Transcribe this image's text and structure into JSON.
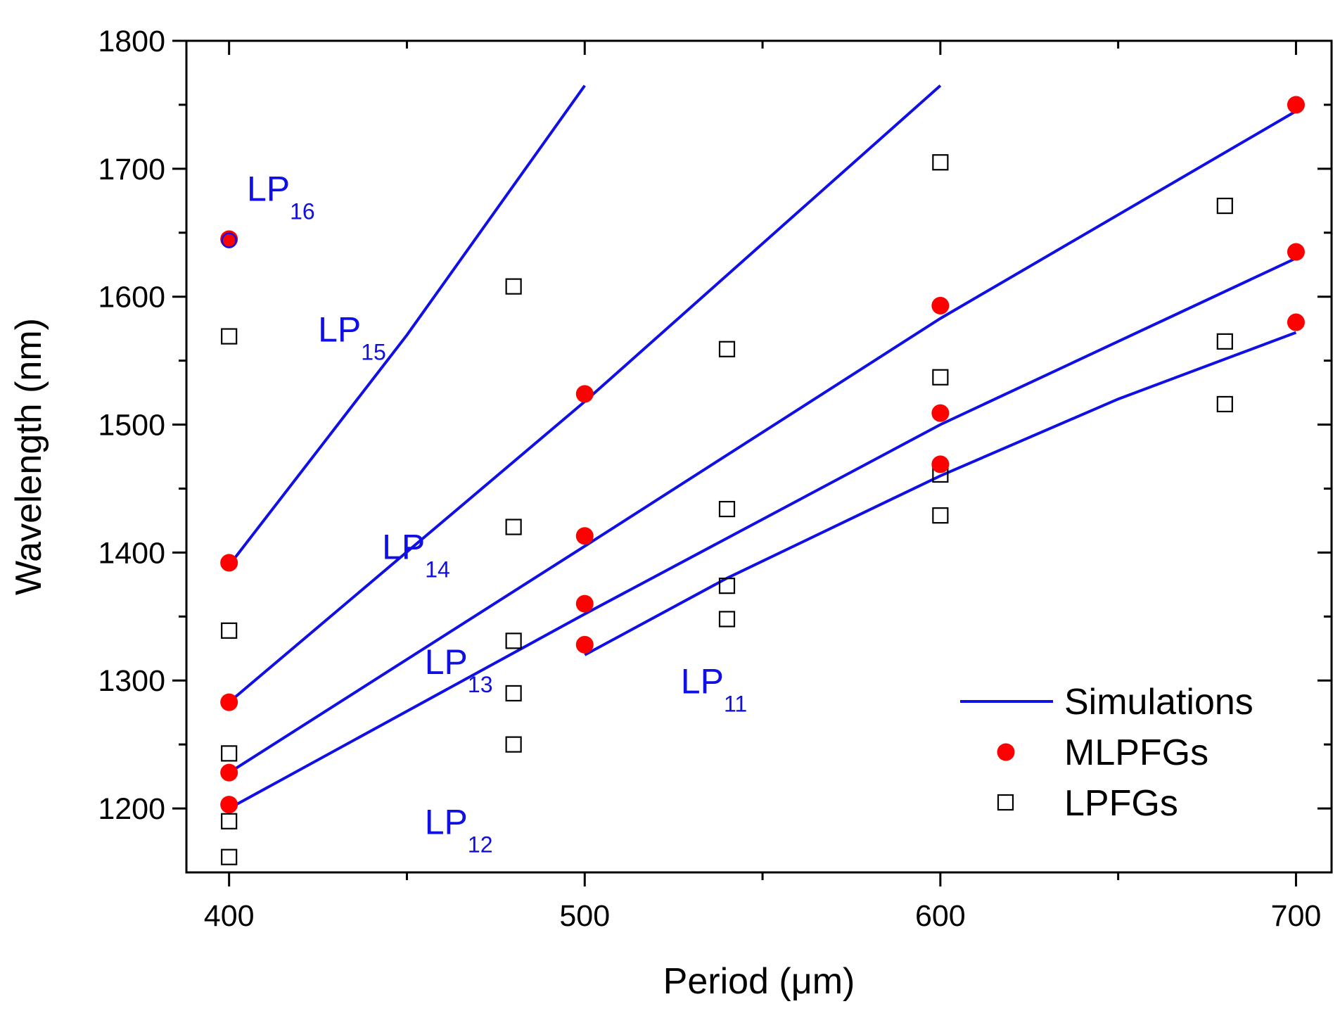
{
  "chart_data": {
    "type": "scatter",
    "title": "",
    "xlabel": "Period (μm)",
    "ylabel": "Wavelength (nm)",
    "xlim": [
      388,
      710
    ],
    "ylim": [
      1150,
      1800
    ],
    "x_ticks": [
      400,
      500,
      600,
      700
    ],
    "x_minor_ticks": [
      450,
      550,
      650
    ],
    "y_ticks": [
      1200,
      1300,
      1400,
      1500,
      1600,
      1700,
      1800
    ],
    "y_minor_ticks": [
      1250,
      1350,
      1450,
      1550,
      1650,
      1750
    ],
    "grid": false,
    "legend_position": "bottom-right",
    "series": [
      {
        "name": "Simulations",
        "kind": "line",
        "color": "#1010e6",
        "curves": [
          {
            "mode": "LP11",
            "x": [
              500,
              540,
              600,
              650,
              700
            ],
            "y": [
              1320,
              1380,
              1460,
              1520,
              1572
            ]
          },
          {
            "mode": "LP12",
            "x": [
              400,
              500,
              600,
              700
            ],
            "y": [
              1200,
              1352,
              1500,
              1630
            ]
          },
          {
            "mode": "LP13",
            "x": [
              400,
              500,
              600,
              700
            ],
            "y": [
              1228,
              1405,
              1583,
              1745
            ]
          },
          {
            "mode": "LP14",
            "x": [
              400,
              500,
              600
            ],
            "y": [
              1283,
              1518,
              1765
            ]
          },
          {
            "mode": "LP15",
            "x": [
              400,
              450,
              500
            ],
            "y": [
              1390,
              1570,
              1765
            ]
          }
        ]
      },
      {
        "name": "MLPFGs",
        "kind": "scatter",
        "marker": "filled-circle",
        "color": "#ff0000",
        "points": [
          {
            "x": 400,
            "y": 1645
          },
          {
            "x": 400,
            "y": 1392
          },
          {
            "x": 400,
            "y": 1283
          },
          {
            "x": 400,
            "y": 1228
          },
          {
            "x": 400,
            "y": 1203
          },
          {
            "x": 500,
            "y": 1524
          },
          {
            "x": 500,
            "y": 1413
          },
          {
            "x": 500,
            "y": 1360
          },
          {
            "x": 500,
            "y": 1328
          },
          {
            "x": 600,
            "y": 1593
          },
          {
            "x": 600,
            "y": 1509
          },
          {
            "x": 600,
            "y": 1469
          },
          {
            "x": 700,
            "y": 1750
          },
          {
            "x": 700,
            "y": 1635
          },
          {
            "x": 700,
            "y": 1580
          }
        ]
      },
      {
        "name": "LPFGs",
        "kind": "scatter",
        "marker": "open-square",
        "color": "#000000",
        "points": [
          {
            "x": 400,
            "y": 1569
          },
          {
            "x": 400,
            "y": 1339
          },
          {
            "x": 400,
            "y": 1243
          },
          {
            "x": 400,
            "y": 1190
          },
          {
            "x": 400,
            "y": 1162
          },
          {
            "x": 480,
            "y": 1608
          },
          {
            "x": 480,
            "y": 1420
          },
          {
            "x": 480,
            "y": 1331
          },
          {
            "x": 480,
            "y": 1290
          },
          {
            "x": 480,
            "y": 1250
          },
          {
            "x": 540,
            "y": 1559
          },
          {
            "x": 540,
            "y": 1434
          },
          {
            "x": 540,
            "y": 1374
          },
          {
            "x": 540,
            "y": 1348
          },
          {
            "x": 600,
            "y": 1705
          },
          {
            "x": 600,
            "y": 1537
          },
          {
            "x": 600,
            "y": 1461
          },
          {
            "x": 600,
            "y": 1429
          },
          {
            "x": 680,
            "y": 1671
          },
          {
            "x": 680,
            "y": 1565
          },
          {
            "x": 680,
            "y": 1516
          }
        ]
      }
    ],
    "open_circle_point": {
      "x": 400,
      "y": 1644,
      "color": "#1010e6"
    },
    "annotations": [
      {
        "main": "LP",
        "sub": "16",
        "x": 405,
        "y": 1675
      },
      {
        "main": "LP",
        "sub": "15",
        "x": 425,
        "y": 1565
      },
      {
        "main": "LP",
        "sub": "14",
        "x": 443,
        "y": 1395
      },
      {
        "main": "LP",
        "sub": "13",
        "x": 455,
        "y": 1305
      },
      {
        "main": "LP",
        "sub": "12",
        "x": 455,
        "y": 1180
      },
      {
        "main": "LP",
        "sub": "11",
        "x": 527,
        "y": 1290
      }
    ]
  }
}
